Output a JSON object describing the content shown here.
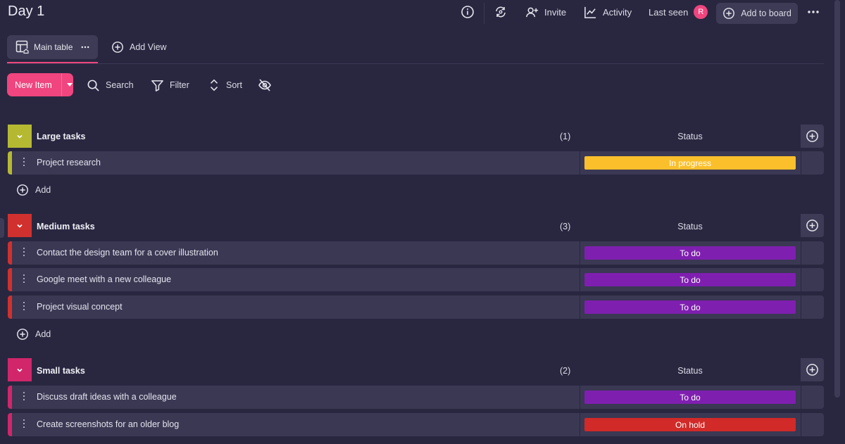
{
  "board": {
    "title": "Day 1"
  },
  "header": {
    "invite_label": "Invite",
    "activity_label": "Activity",
    "last_seen_label": "Last seen",
    "avatar_initial": "R",
    "add_to_board_label": "Add to board"
  },
  "views": {
    "main_table_label": "Main table",
    "add_view_label": "Add View"
  },
  "toolbar": {
    "new_item_label": "New Item",
    "search_label": "Search",
    "filter_label": "Filter",
    "sort_label": "Sort"
  },
  "colors": {
    "accent": "#f0457f",
    "large": "#b5b932",
    "medium": "#d0312f",
    "small": "#d1266a",
    "in_progress": "#fbbf2c",
    "to_do": "#7f1fb0",
    "on_hold": "#d12a28"
  },
  "groups": [
    {
      "name": "Large tasks",
      "count": "(1)",
      "status_header": "Status",
      "add_label": "Add",
      "items": [
        {
          "name": "Project research",
          "status": "In progress"
        }
      ]
    },
    {
      "name": "Medium tasks",
      "count": "(3)",
      "status_header": "Status",
      "add_label": "Add",
      "items": [
        {
          "name": "Contact the design team for a cover illustration",
          "status": "To do"
        },
        {
          "name": "Google meet with a new colleague",
          "status": "To do"
        },
        {
          "name": "Project visual concept",
          "status": "To do"
        }
      ]
    },
    {
      "name": "Small tasks",
      "count": "(2)",
      "status_header": "Status",
      "items": [
        {
          "name": "Discuss draft ideas with a colleague",
          "status": "To do"
        },
        {
          "name": "Create screenshots for an older blog",
          "status": "On hold"
        }
      ]
    }
  ]
}
